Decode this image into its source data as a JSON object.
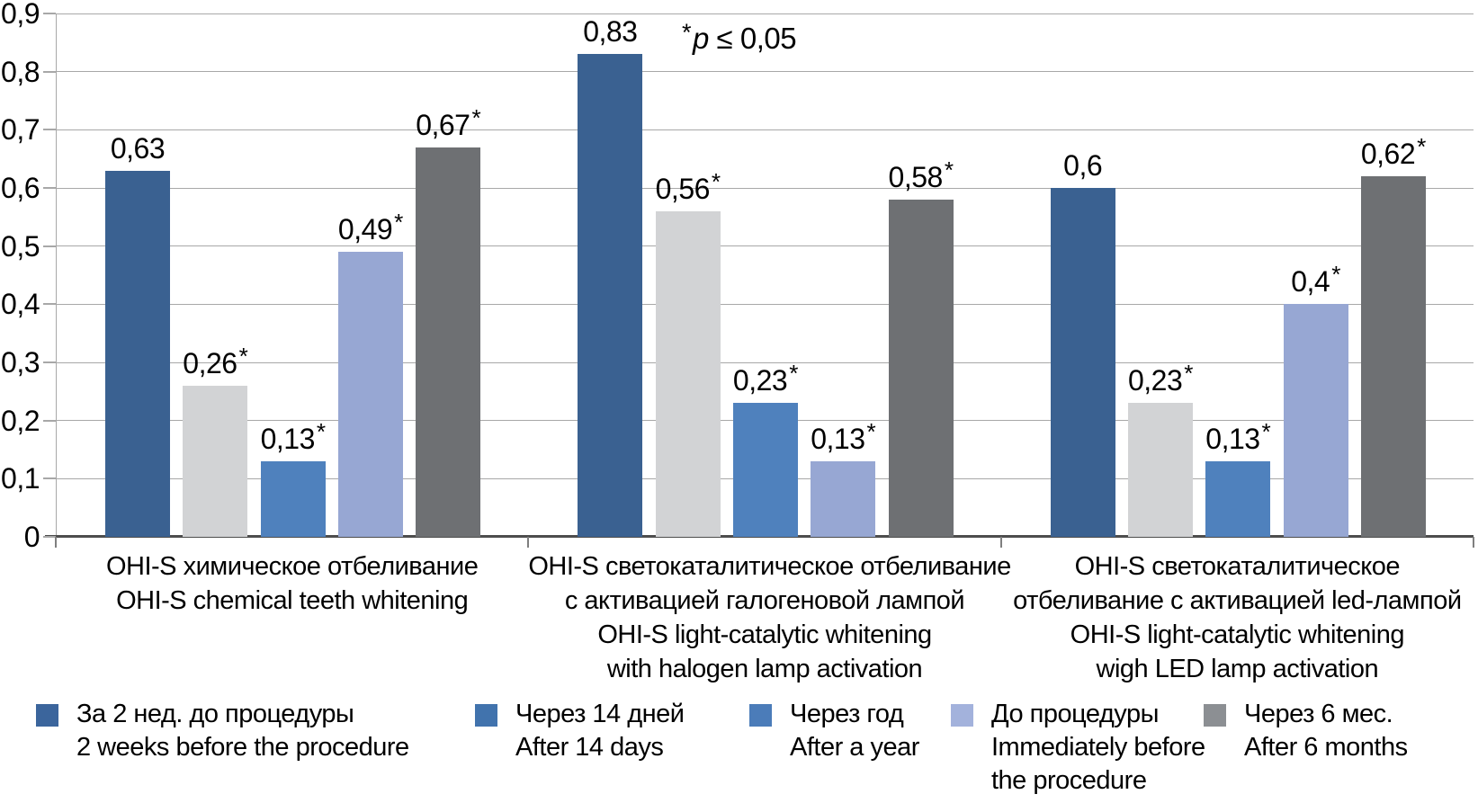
{
  "chart_data": {
    "type": "bar",
    "title": "",
    "xlabel": "",
    "ylabel": "",
    "ylim": [
      0,
      0.9
    ],
    "ytick_step": 0.1,
    "yticks": [
      "0",
      "0,1",
      "0,2",
      "0,3",
      "0,4",
      "0,5",
      "0,6",
      "0,7",
      "0,8",
      "0,9"
    ],
    "grid": true,
    "legend_position": "bottom",
    "annotation": {
      "star": "*",
      "p": "p",
      "rest": " ≤ 0,05"
    },
    "categories": [
      {
        "lines": [
          "OHI-S химическое отбеливание",
          "OHI-S chemical teeth whitening"
        ]
      },
      {
        "lines": [
          "OHI-S светокаталитическое отбеливание",
          "с активацией галогеновой лампой",
          "OHI-S light-catalytic whitening",
          "with halogen lamp activation"
        ]
      },
      {
        "lines": [
          "OHI-S светокаталитическое",
          "отбеливание с активацией led-лампой",
          "OHI-S light-catalytic whitening",
          "wigh LED lamp activation"
        ]
      }
    ],
    "series": [
      {
        "name": "За 2 нед. до процедуры / 2 weeks before the procedure",
        "color": "#3A6191",
        "values": [
          0.63,
          0.83,
          0.6
        ],
        "labels": [
          "0,63",
          "0,83",
          "0,6"
        ],
        "starred": [
          false,
          false,
          false
        ]
      },
      {
        "name": "Через 14 дней / After 14 days",
        "color": "#D2D3D5",
        "values": [
          0.26,
          0.56,
          0.23
        ],
        "labels": [
          "0,26",
          "0,56",
          "0,23"
        ],
        "starred": [
          true,
          true,
          true
        ]
      },
      {
        "name": "Через год / After a year",
        "color": "#4F81BD",
        "values": [
          0.13,
          0.23,
          0.13
        ],
        "labels": [
          "0,13",
          "0,23",
          "0,13"
        ],
        "starred": [
          true,
          true,
          true
        ]
      },
      {
        "name": "До процедуры / Immediately before the procedure",
        "color": "#97A7D3",
        "values": [
          0.49,
          0.13,
          0.4
        ],
        "labels": [
          "0,49",
          "0,13",
          "0,4"
        ],
        "starred": [
          true,
          true,
          true
        ]
      },
      {
        "name": "Через 6 мес. / After 6 months",
        "color": "#6E7073",
        "values": [
          0.67,
          0.58,
          0.62
        ],
        "labels": [
          "0,67",
          "0,58",
          "0,62"
        ],
        "starred": [
          true,
          true,
          true
        ]
      }
    ],
    "legend": [
      {
        "swatch_color": "#3B659C",
        "lines": [
          "За 2 нед. до процедуры",
          "2 weeks before the procedure"
        ]
      },
      {
        "swatch_color": "#4173AD",
        "lines": [
          "Через 14 дней",
          "After 14 days"
        ]
      },
      {
        "swatch_color": "#4B7CB9",
        "lines": [
          "Через год",
          "After a year"
        ]
      },
      {
        "swatch_color": "#A3B2DC",
        "lines": [
          "До процедуры",
          "Immediately before",
          "the procedure"
        ]
      },
      {
        "swatch_color": "#8C8F93",
        "lines": [
          "Через 6 мес.",
          "After 6 months"
        ]
      }
    ]
  }
}
